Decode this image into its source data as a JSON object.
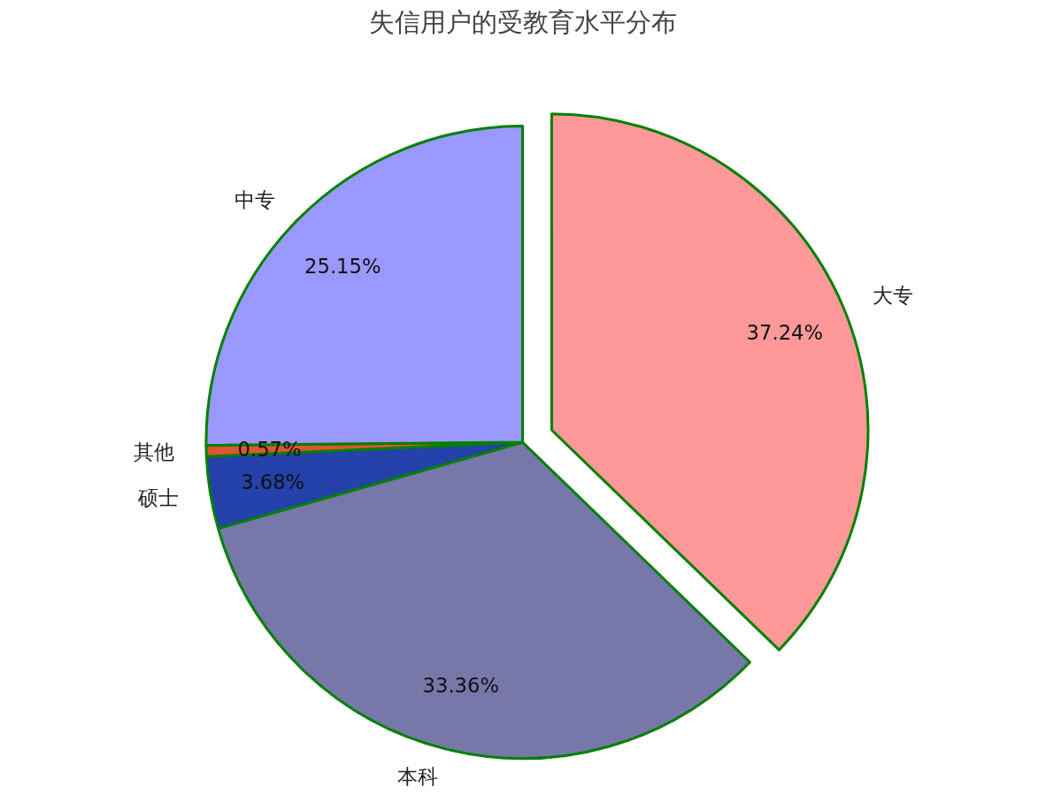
{
  "chart_data": {
    "type": "pie",
    "title": "失信用户的受教育水平分布",
    "categories": [
      "大专",
      "本科",
      "硕士",
      "其他",
      "中专"
    ],
    "values": [
      37.24,
      33.36,
      3.68,
      0.57,
      25.15
    ],
    "colors": [
      "#ff9999",
      "#7777aa",
      "#2442aa",
      "#dd5533",
      "#9999ff"
    ],
    "value_labels": [
      "37.24%",
      "33.36%",
      "3.68%",
      "0.57%",
      "25.15%"
    ]
  }
}
